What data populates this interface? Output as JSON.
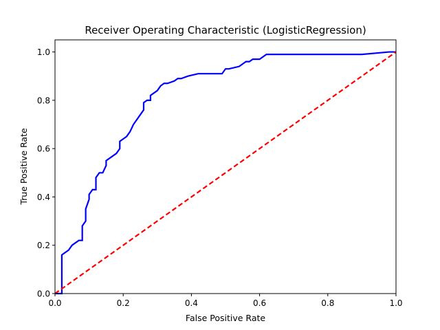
{
  "chart_data": {
    "type": "line",
    "title": "Receiver Operating Characteristic (LogisticRegression)",
    "xlabel": "False Positive Rate",
    "ylabel": "True Positive Rate",
    "xlim": [
      0.0,
      1.0
    ],
    "ylim": [
      0.0,
      1.05
    ],
    "xticks": [
      "0.0",
      "0.2",
      "0.4",
      "0.6",
      "0.8",
      "1.0"
    ],
    "yticks": [
      "0.0",
      "0.2",
      "0.4",
      "0.6",
      "0.8",
      "1.0"
    ],
    "grid": false,
    "legend": "none",
    "series": [
      {
        "style": "solid",
        "color": "#0000ff",
        "step": true,
        "x": [
          0.0,
          0.02,
          0.02,
          0.03,
          0.04,
          0.05,
          0.06,
          0.07,
          0.08,
          0.08,
          0.09,
          0.09,
          0.1,
          0.1,
          0.11,
          0.12,
          0.12,
          0.13,
          0.14,
          0.15,
          0.15,
          0.16,
          0.17,
          0.18,
          0.19,
          0.19,
          0.2,
          0.21,
          0.22,
          0.23,
          0.24,
          0.25,
          0.26,
          0.26,
          0.27,
          0.28,
          0.28,
          0.29,
          0.3,
          0.31,
          0.32,
          0.33,
          0.35,
          0.36,
          0.37,
          0.39,
          0.42,
          0.45,
          0.49,
          0.5,
          0.51,
          0.54,
          0.55,
          0.56,
          0.57,
          0.58,
          0.59,
          0.6,
          0.61,
          0.62,
          0.65,
          0.7,
          0.8,
          0.9,
          0.98,
          1.0
        ],
        "y": [
          0.0,
          0.0,
          0.16,
          0.17,
          0.18,
          0.2,
          0.21,
          0.22,
          0.22,
          0.28,
          0.3,
          0.35,
          0.39,
          0.41,
          0.43,
          0.43,
          0.48,
          0.5,
          0.5,
          0.53,
          0.55,
          0.56,
          0.57,
          0.58,
          0.6,
          0.63,
          0.64,
          0.65,
          0.67,
          0.7,
          0.72,
          0.74,
          0.76,
          0.79,
          0.8,
          0.8,
          0.82,
          0.83,
          0.84,
          0.86,
          0.87,
          0.87,
          0.88,
          0.89,
          0.89,
          0.9,
          0.91,
          0.91,
          0.91,
          0.93,
          0.93,
          0.94,
          0.95,
          0.96,
          0.96,
          0.97,
          0.97,
          0.97,
          0.98,
          0.99,
          0.99,
          0.99,
          0.99,
          0.99,
          1.0,
          1.0
        ]
      },
      {
        "style": "dashed",
        "color": "#ff0000",
        "step": false,
        "x": [
          0.0,
          1.0
        ],
        "y": [
          0.0,
          1.0
        ]
      }
    ]
  }
}
